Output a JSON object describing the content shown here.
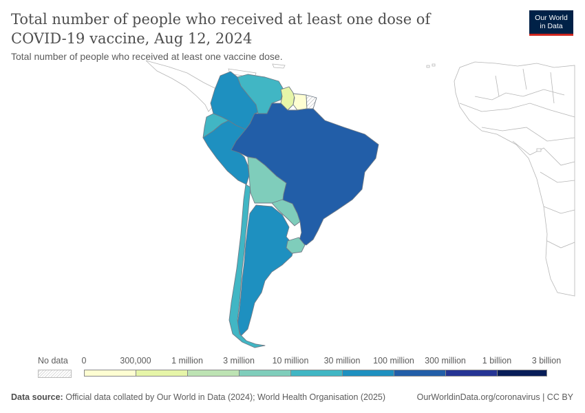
{
  "title": "Total number of people who received at least one dose of COVID-19 vaccine, Aug 12, 2024",
  "subtitle": "Total number of people who received at least one vaccine dose.",
  "logo": {
    "line1": "Our World",
    "line2": "in Data"
  },
  "legend": {
    "no_data_label": "No data",
    "labels": [
      "0",
      "300,000",
      "1 million",
      "3 million",
      "10 million",
      "30 million",
      "100 million",
      "300 million",
      "1 billion",
      "3 billion"
    ],
    "colors": [
      "#fefed2",
      "#e6f5a8",
      "#bde3b3",
      "#7fcdbb",
      "#41b6c4",
      "#1e90c0",
      "#225ea8",
      "#253494",
      "#081d58"
    ]
  },
  "regions": [
    {
      "name": "Brazil",
      "color": "#225ea8"
    },
    {
      "name": "Colombia",
      "color": "#1e90c0"
    },
    {
      "name": "Peru",
      "color": "#1e90c0"
    },
    {
      "name": "Argentina",
      "color": "#1e90c0"
    },
    {
      "name": "Venezuela",
      "color": "#41b6c4"
    },
    {
      "name": "Ecuador",
      "color": "#41b6c4"
    },
    {
      "name": "Chile",
      "color": "#41b6c4"
    },
    {
      "name": "Bolivia",
      "color": "#7fcdbb"
    },
    {
      "name": "Paraguay",
      "color": "#7fcdbb"
    },
    {
      "name": "Uruguay",
      "color": "#7fcdbb"
    },
    {
      "name": "Guyana",
      "color": "#e6f5a8"
    },
    {
      "name": "Suriname",
      "color": "#fefed2"
    },
    {
      "name": "French Guiana",
      "color": "no-data"
    }
  ],
  "footer": {
    "source_label": "Data source:",
    "source_text": "Official data collated by Our World in Data (2024); World Health Organisation (2025)",
    "right_text": "OurWorldinData.org/coronavirus | CC BY"
  }
}
